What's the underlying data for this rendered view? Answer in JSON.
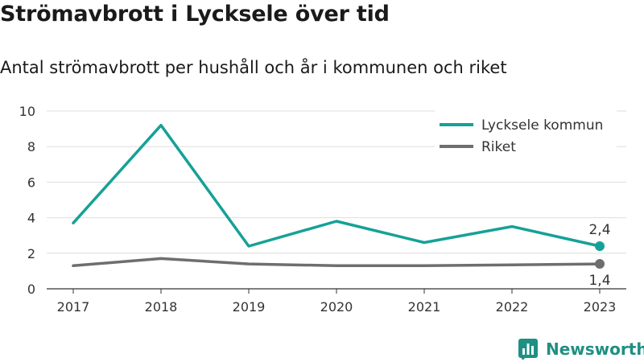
{
  "header": {
    "title": "Strömavbrott i Lycksele över tid",
    "subtitle": "Antal strömavbrott per hushåll och år i kommunen och riket"
  },
  "brand": {
    "name": "Newsworthy",
    "color": "#1f8f83",
    "icon": "bar-chart-logo-icon"
  },
  "chart_data": {
    "type": "line",
    "title": "Strömavbrott i Lycksele över tid",
    "subtitle": "Antal strömavbrott per hushåll och år i kommunen och riket",
    "xlabel": "",
    "ylabel": "",
    "categories": [
      "2017",
      "2018",
      "2019",
      "2020",
      "2021",
      "2022",
      "2023"
    ],
    "ylim": [
      0,
      10
    ],
    "yticks": [
      0,
      2,
      4,
      6,
      8,
      10
    ],
    "ytick_labels": [
      "0",
      "2",
      "4",
      "6",
      "8",
      "10"
    ],
    "grid": "horizontal",
    "legend_position": "top-right",
    "series": [
      {
        "name": "Lycksele kommun",
        "color": "#16a197",
        "values": [
          3.7,
          9.2,
          2.4,
          3.8,
          2.6,
          3.5,
          2.4
        ],
        "end_label": "2,4"
      },
      {
        "name": "Riket",
        "color": "#6e6e6e",
        "values": [
          1.3,
          1.7,
          1.4,
          1.3,
          1.3,
          1.35,
          1.4
        ],
        "end_label": "1,4"
      }
    ]
  }
}
